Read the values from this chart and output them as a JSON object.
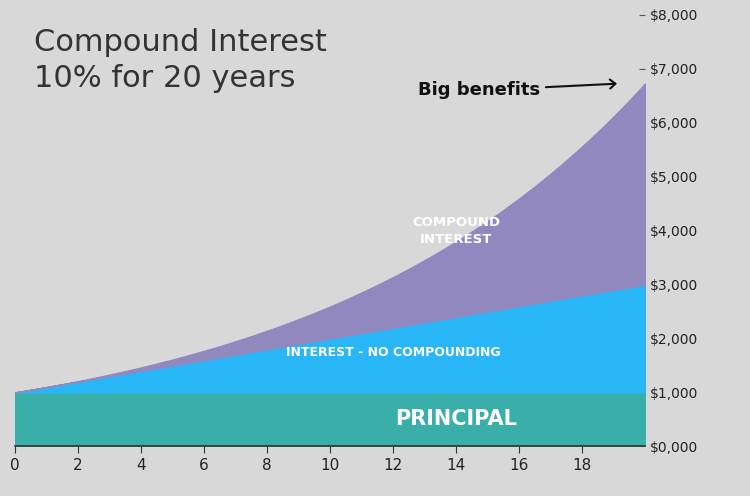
{
  "title_line1": "Compound Interest",
  "title_line2": "10% for 20 years",
  "annotation_text": "Big benefits",
  "principal": 1000,
  "rate": 0.1,
  "years": 20,
  "bg_color": "#d8d8d8",
  "principal_color": "#3aafa9",
  "simple_interest_color": "#29b6f6",
  "compound_interest_color": "#9088be",
  "ylim": [
    0,
    8000
  ],
  "xlim": [
    0,
    20
  ],
  "yticks": [
    0,
    1000,
    2000,
    3000,
    4000,
    5000,
    6000,
    7000,
    8000
  ],
  "ytick_labels": [
    "$0,000",
    "$1,000",
    "$2,000",
    "$3,000",
    "$4,000",
    "$5,000",
    "$6,000",
    "$7,000",
    "$8,000"
  ],
  "xticks": [
    0,
    2,
    4,
    6,
    8,
    10,
    12,
    14,
    16,
    18
  ],
  "title_fontsize": 22,
  "title_color": "#333333",
  "label_color": "#ffffff"
}
